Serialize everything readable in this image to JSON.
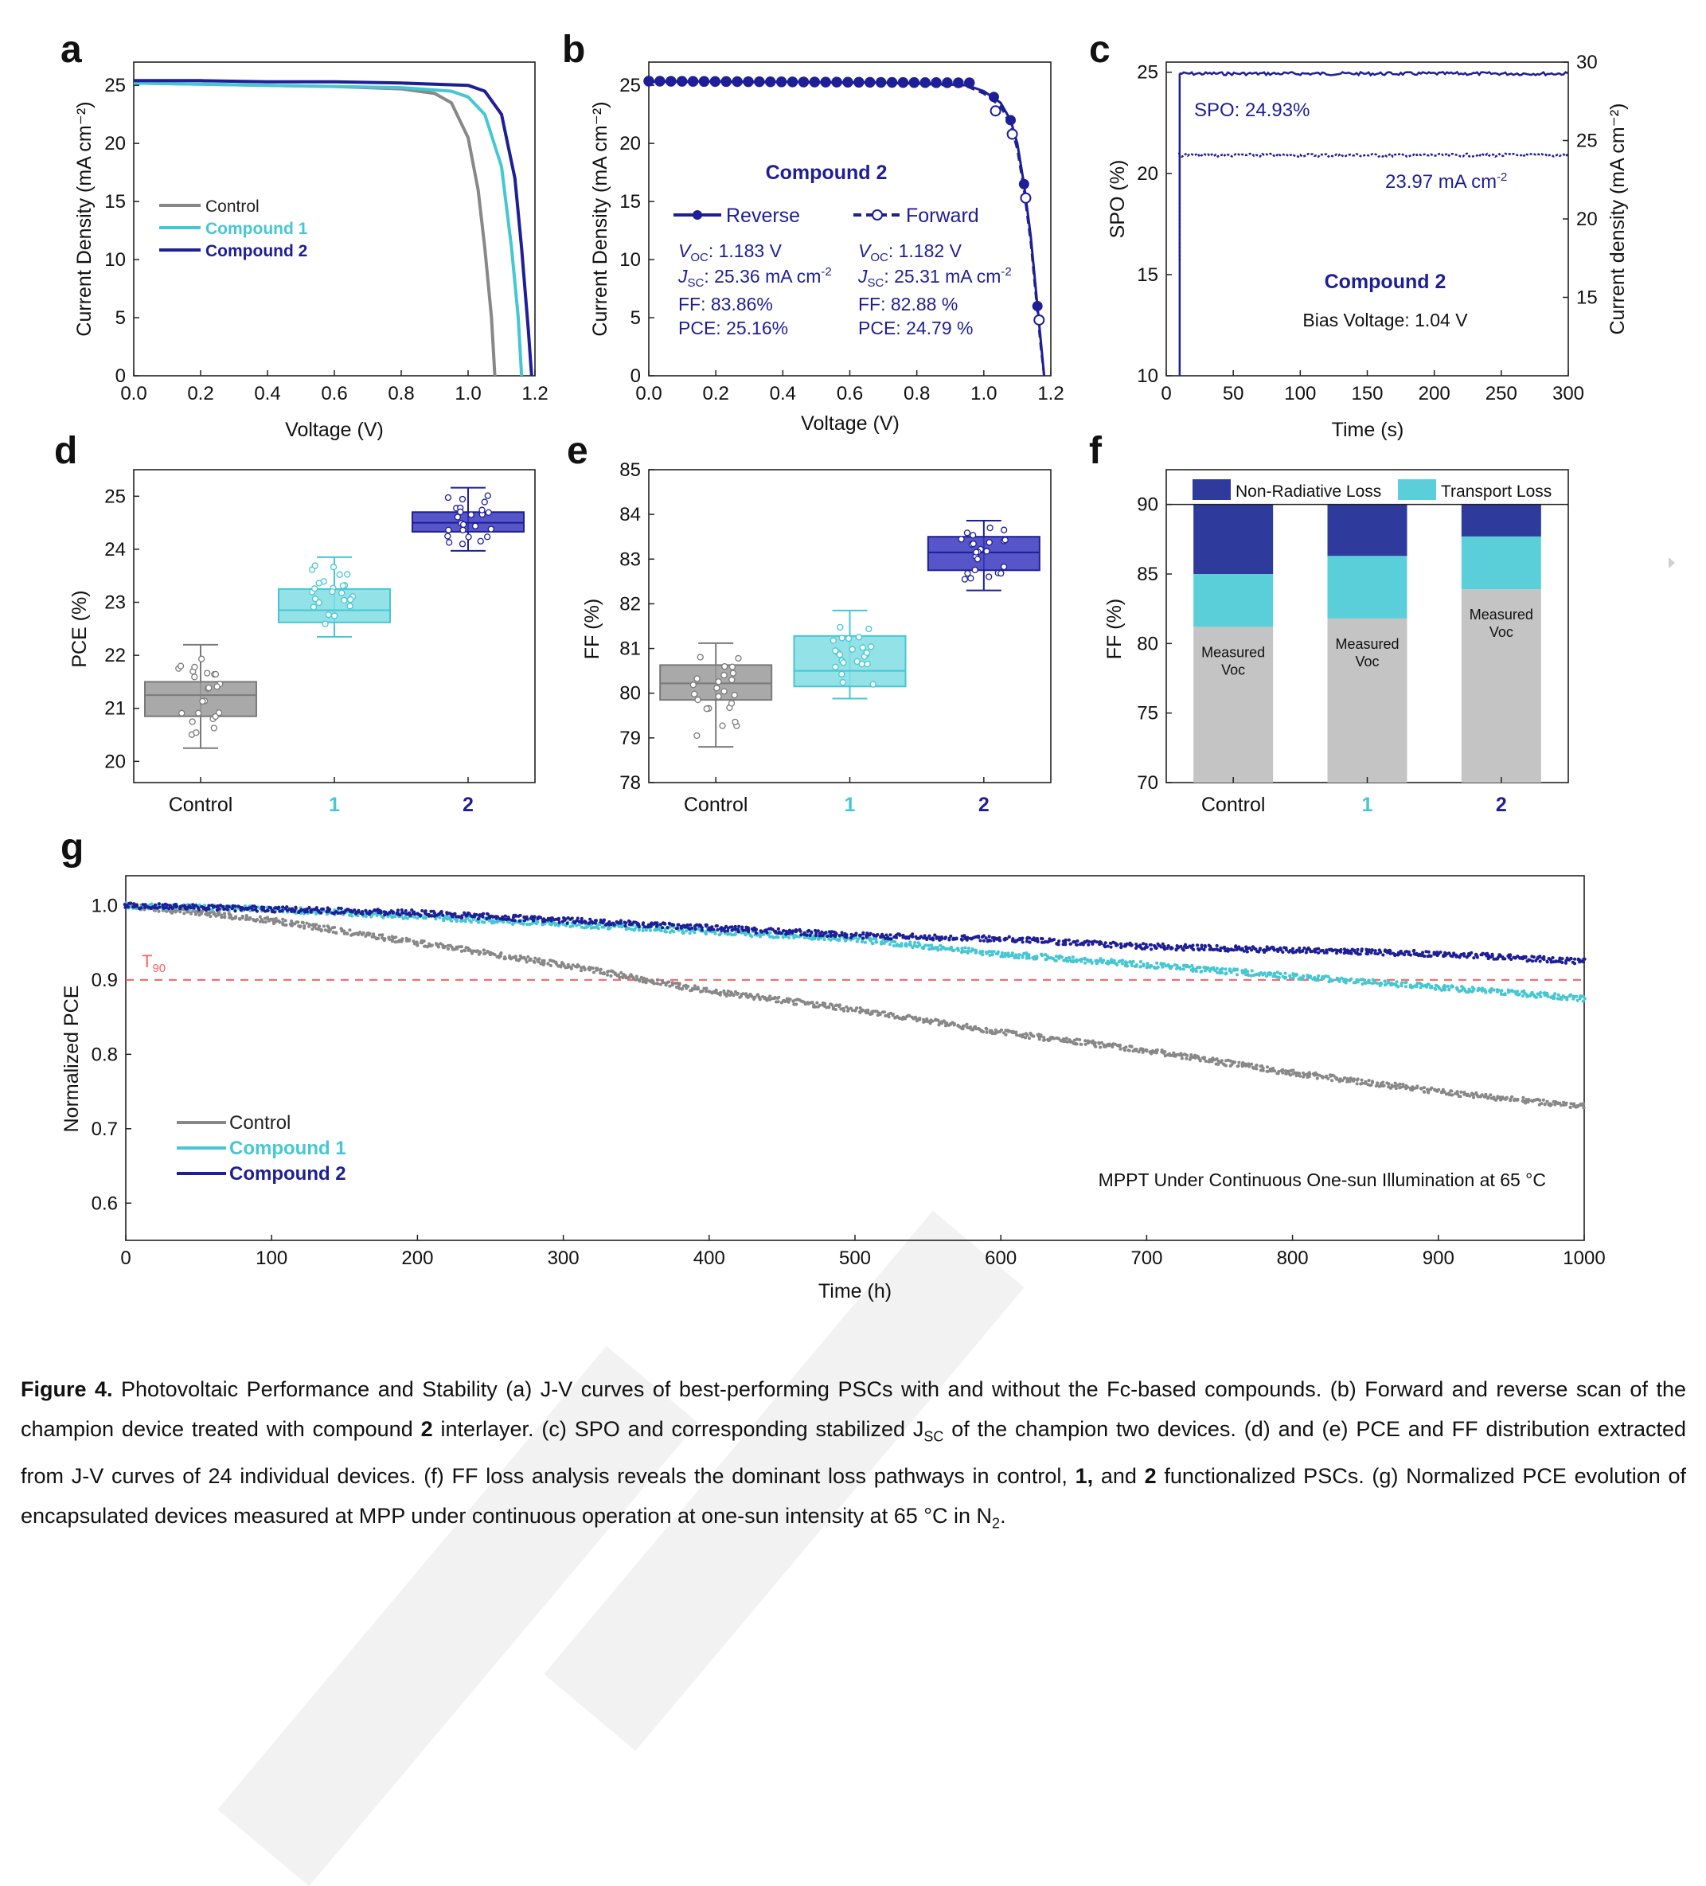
{
  "colors": {
    "control": "#888888",
    "c1": "#45c7d3",
    "c2": "#1e1e96",
    "red": "#ff6060",
    "box_gray": "#9a9a9a",
    "loss_dark": "#2e3a9c",
    "loss_light": "#5acfd9",
    "measured": "#c4c4c4"
  },
  "chart_data": [
    {
      "panel": "a",
      "type": "line",
      "xlabel": "Voltage (V)",
      "ylabel": "Current Density (mA cm⁻²)",
      "xlim": [
        0,
        1.2
      ],
      "ylim": [
        0,
        27
      ],
      "xticks": [
        "0.0",
        "0.2",
        "0.4",
        "0.6",
        "0.8",
        "1.0",
        "1.2"
      ],
      "yticks": [
        "0",
        "5",
        "10",
        "15",
        "20",
        "25"
      ],
      "series": [
        {
          "name": "Control",
          "color": "#888888",
          "x": [
            0,
            0.2,
            0.4,
            0.6,
            0.8,
            0.9,
            0.95,
            1.0,
            1.03,
            1.05,
            1.07,
            1.08
          ],
          "y": [
            25.2,
            25.1,
            25.0,
            24.9,
            24.7,
            24.3,
            23.5,
            20.5,
            16,
            11,
            5,
            0
          ]
        },
        {
          "name": "Compound 1",
          "color": "#45c7d3",
          "x": [
            0,
            0.2,
            0.4,
            0.6,
            0.8,
            0.95,
            1.0,
            1.05,
            1.1,
            1.13,
            1.15,
            1.16
          ],
          "y": [
            25.2,
            25.1,
            25.0,
            24.9,
            24.8,
            24.5,
            24.0,
            22.5,
            18,
            11,
            5,
            0
          ]
        },
        {
          "name": "Compound 2",
          "color": "#1e1e96",
          "x": [
            0,
            0.2,
            0.4,
            0.6,
            0.8,
            1.0,
            1.05,
            1.1,
            1.14,
            1.16,
            1.18,
            1.19
          ],
          "y": [
            25.4,
            25.4,
            25.3,
            25.3,
            25.2,
            25.0,
            24.5,
            22.5,
            17,
            11,
            4,
            0
          ]
        }
      ],
      "legend": "center-left"
    },
    {
      "panel": "b",
      "type": "line",
      "xlabel": "Voltage (V)",
      "ylabel": "Current Density (mA cm⁻²)",
      "xlim": [
        0,
        1.2
      ],
      "ylim": [
        0,
        27
      ],
      "xticks": [
        "0.0",
        "0.2",
        "0.4",
        "0.6",
        "0.8",
        "1.0",
        "1.2"
      ],
      "yticks": [
        "0",
        "5",
        "10",
        "15",
        "20",
        "25"
      ],
      "annotation_title": "Compound 2",
      "series": [
        {
          "name": "Reverse",
          "color": "#1e1e96",
          "style": "solid-filled",
          "x": [
            0,
            0.2,
            0.4,
            0.6,
            0.8,
            0.95,
            1.0,
            1.05,
            1.08,
            1.1,
            1.12,
            1.14,
            1.16,
            1.17,
            1.18
          ],
          "y": [
            25.36,
            25.33,
            25.3,
            25.26,
            25.2,
            25.0,
            24.5,
            23.5,
            22,
            20,
            16.5,
            12,
            6,
            3,
            0
          ]
        },
        {
          "name": "Forward",
          "color": "#1e1e96",
          "style": "dashed-open",
          "x": [
            0,
            0.2,
            0.4,
            0.6,
            0.8,
            0.95,
            1.0,
            1.05,
            1.08,
            1.1,
            1.12,
            1.14,
            1.16,
            1.17,
            1.18
          ],
          "y": [
            25.31,
            25.29,
            25.26,
            25.22,
            25.16,
            24.9,
            24.3,
            23.2,
            21.6,
            19.5,
            16,
            11.5,
            5.5,
            2.5,
            0
          ]
        }
      ],
      "reverse_params": {
        "voc_label": "OC",
        "voc": ": 1.183 V",
        "jsc_label": "SC",
        "jsc": ": 25.36 mA cm",
        "ff": "FF: 83.86%",
        "pce": "PCE: 25.16%"
      },
      "forward_params": {
        "voc_label": "OC",
        "voc": ": 1.182 V",
        "jsc_label": "SC",
        "jsc": ": 25.31 mA cm",
        "ff": "FF: 82.88 %",
        "pce": "PCE: 24.79 %"
      }
    },
    {
      "panel": "c",
      "type": "line",
      "xlabel": "Time (s)",
      "ylabel": "SPO (%)",
      "y2label": "Current density (mA cm⁻²)",
      "xlim": [
        0,
        300
      ],
      "ylim": [
        10,
        25.5
      ],
      "y2lim": [
        10,
        30
      ],
      "xticks": [
        "0",
        "50",
        "100",
        "150",
        "200",
        "250",
        "300"
      ],
      "yticks": [
        "10",
        "15",
        "20",
        "25"
      ],
      "y2ticks": [
        "15",
        "20",
        "25",
        "30"
      ],
      "series": [
        {
          "name": "SPO",
          "axis": "left",
          "value": 24.93,
          "start": 10
        },
        {
          "name": "Jsc",
          "axis": "left",
          "value": 20.9,
          "start": 10
        }
      ],
      "annotations": {
        "spo": "SPO: 24.93%",
        "jsc": "23.97 mA cm",
        "title": "Compound 2",
        "bias": "Bias Voltage: 1.04 V"
      }
    },
    {
      "panel": "d",
      "type": "box",
      "ylabel": "PCE (%)",
      "ylim": [
        19.6,
        25.5
      ],
      "yticks": [
        "20",
        "21",
        "22",
        "23",
        "24",
        "25"
      ],
      "categories": [
        "Control",
        "1",
        "2"
      ],
      "boxes": [
        {
          "min": 20.25,
          "q1": 20.85,
          "median": 21.25,
          "q3": 21.5,
          "max": 22.2
        },
        {
          "min": 22.35,
          "q1": 22.62,
          "median": 22.85,
          "q3": 23.25,
          "max": 23.85
        },
        {
          "min": 23.97,
          "q1": 24.33,
          "median": 24.5,
          "q3": 24.7,
          "max": 25.16
        }
      ]
    },
    {
      "panel": "e",
      "type": "box",
      "ylabel": "FF (%)",
      "ylim": [
        78,
        85
      ],
      "yticks": [
        "78",
        "79",
        "80",
        "81",
        "82",
        "83",
        "84",
        "85"
      ],
      "categories": [
        "Control",
        "1",
        "2"
      ],
      "boxes": [
        {
          "min": 78.8,
          "q1": 79.85,
          "median": 80.22,
          "q3": 80.63,
          "max": 81.12
        },
        {
          "min": 79.88,
          "q1": 80.15,
          "median": 80.5,
          "q3": 81.28,
          "max": 81.85
        },
        {
          "min": 82.3,
          "q1": 82.75,
          "median": 83.15,
          "q3": 83.5,
          "max": 83.86
        }
      ]
    },
    {
      "panel": "f",
      "type": "bar",
      "ylabel": "FF (%)",
      "ylim": [
        70,
        92.5
      ],
      "yticks": [
        "70",
        "75",
        "80",
        "85",
        "90"
      ],
      "categories": [
        "Control",
        "1",
        "2"
      ],
      "measured": [
        81.2,
        81.8,
        83.9
      ],
      "transport_top": [
        85.0,
        86.3,
        87.7
      ],
      "limit": 90,
      "series_names": [
        "Non-Radiative Loss",
        "Transport Loss"
      ],
      "bar_label": [
        "Measured",
        "Voc"
      ]
    },
    {
      "panel": "g",
      "type": "scatter",
      "xlabel": "Time (h)",
      "ylabel": "Normalized PCE",
      "xlim": [
        0,
        1000
      ],
      "ylim": [
        0.55,
        1.04
      ],
      "xticks": [
        "0",
        "100",
        "200",
        "300",
        "400",
        "500",
        "600",
        "700",
        "800",
        "900",
        "1000"
      ],
      "yticks": [
        "0.6",
        "0.7",
        "0.8",
        "0.9",
        "1.0"
      ],
      "threshold": {
        "value": 0.9,
        "label": "T",
        "sub": "90"
      },
      "series": [
        {
          "name": "Control",
          "color": "#888888",
          "x": [
            0,
            100,
            200,
            300,
            400,
            500,
            600,
            700,
            800,
            900,
            1000
          ],
          "y": [
            1.0,
            0.98,
            0.95,
            0.92,
            0.885,
            0.86,
            0.83,
            0.805,
            0.775,
            0.75,
            0.73
          ]
        },
        {
          "name": "Compound 1",
          "color": "#45c7d3",
          "x": [
            0,
            100,
            200,
            300,
            400,
            500,
            600,
            700,
            800,
            900,
            1000
          ],
          "y": [
            1.0,
            0.995,
            0.985,
            0.975,
            0.965,
            0.955,
            0.935,
            0.92,
            0.905,
            0.89,
            0.875
          ]
        },
        {
          "name": "Compound 2",
          "color": "#1e1e96",
          "x": [
            0,
            100,
            200,
            300,
            400,
            500,
            600,
            700,
            800,
            900,
            1000
          ],
          "y": [
            1.0,
            0.995,
            0.99,
            0.98,
            0.97,
            0.96,
            0.955,
            0.945,
            0.94,
            0.935,
            0.925
          ]
        }
      ],
      "annotation": "MPPT Under Continuous One-sun Illumination at 65 °C"
    }
  ],
  "panel_labels": [
    "a",
    "b",
    "c",
    "d",
    "e",
    "f",
    "g"
  ],
  "caption": {
    "lead": "Figure 4.",
    "t1": " Photovoltaic Performance and Stability (a) J-V curves of best-performing PSCs with and without the Fc-based compounds. (b) Forward and reverse scan of the champion device treated with compound ",
    "b1": "2",
    "t2": " interlayer. (c) SPO and corresponding stabilized J",
    "sc": "SC",
    "t3": " of the champion two devices. (d) and (e) PCE and FF distribution extracted from J-V curves of 24 individual devices. (f) FF loss analysis reveals the dominant loss pathways in control, ",
    "b2": "1,",
    "t4": " and ",
    "b3": "2",
    "t5": " functionalized PSCs. (g) Normalized PCE evolution of encapsulated devices measured at MPP under continuous operation at one-sun intensity at 65 °C in N",
    "n2": "2",
    "t6": "."
  }
}
